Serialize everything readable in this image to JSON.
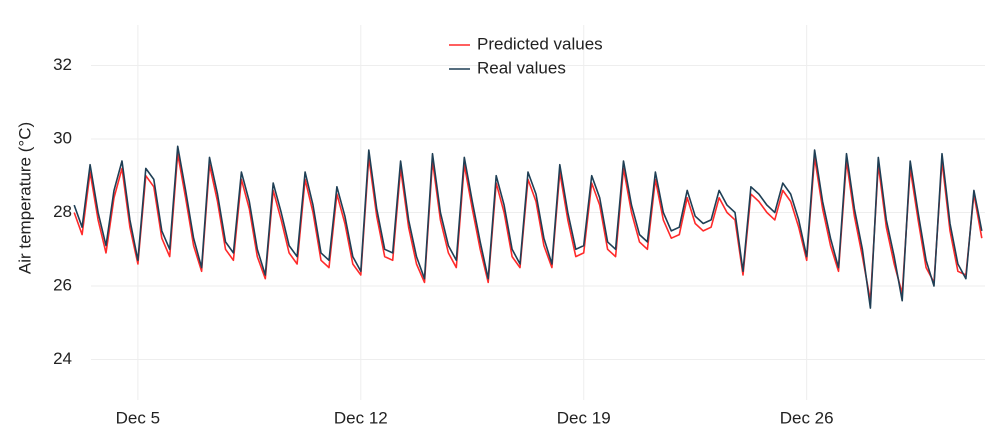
{
  "chart_data": {
    "type": "line",
    "y_label": "Air temperature (°C)",
    "x": [
      3,
      3.25,
      3.5,
      3.75,
      4,
      4.25,
      4.5,
      4.75,
      5,
      5.25,
      5.5,
      5.75,
      6,
      6.25,
      6.5,
      6.75,
      7,
      7.25,
      7.5,
      7.75,
      8,
      8.25,
      8.5,
      8.75,
      9,
      9.25,
      9.5,
      9.75,
      10,
      10.25,
      10.5,
      10.75,
      11,
      11.25,
      11.5,
      11.75,
      12,
      12.25,
      12.5,
      12.75,
      13,
      13.25,
      13.5,
      13.75,
      14,
      14.25,
      14.5,
      14.75,
      15,
      15.25,
      15.5,
      15.75,
      16,
      16.25,
      16.5,
      16.75,
      17,
      17.25,
      17.5,
      17.75,
      18,
      18.25,
      18.5,
      18.75,
      19,
      19.25,
      19.5,
      19.75,
      20,
      20.25,
      20.5,
      20.75,
      21,
      21.25,
      21.5,
      21.75,
      22,
      22.25,
      22.5,
      22.75,
      23,
      23.25,
      23.5,
      23.75,
      24,
      24.25,
      24.5,
      24.75,
      25,
      25.25,
      25.5,
      25.75,
      26,
      26.25,
      26.5,
      26.75,
      27,
      27.25,
      27.5,
      27.75,
      28,
      28.25,
      28.5,
      28.75,
      29,
      29.25,
      29.5,
      29.75,
      30,
      30.25,
      30.5,
      30.75,
      31,
      31.25,
      31.5
    ],
    "series": [
      {
        "name": "Predicted values",
        "color": "#ff2a2a",
        "values": [
          28.0,
          27.4,
          29.1,
          27.8,
          26.9,
          28.4,
          29.2,
          27.6,
          26.6,
          29.0,
          28.7,
          27.3,
          26.8,
          29.6,
          28.4,
          27.1,
          26.4,
          29.3,
          28.3,
          27.0,
          26.7,
          28.9,
          28.1,
          26.8,
          26.2,
          28.6,
          27.8,
          26.9,
          26.6,
          28.9,
          28.0,
          26.7,
          26.5,
          28.5,
          27.7,
          26.6,
          26.3,
          29.5,
          27.9,
          26.8,
          26.7,
          29.2,
          27.6,
          26.6,
          26.1,
          29.4,
          27.8,
          26.9,
          26.5,
          29.3,
          28.1,
          27.0,
          26.1,
          28.8,
          28.0,
          26.8,
          26.5,
          28.9,
          28.3,
          27.1,
          26.5,
          29.1,
          27.8,
          26.8,
          26.9,
          28.8,
          28.2,
          27.0,
          26.8,
          29.2,
          28.0,
          27.2,
          27.0,
          28.9,
          27.8,
          27.3,
          27.4,
          28.4,
          27.7,
          27.5,
          27.6,
          28.4,
          28.0,
          27.8,
          26.3,
          28.5,
          28.3,
          28.0,
          27.8,
          28.6,
          28.3,
          27.6,
          26.7,
          29.5,
          28.1,
          27.1,
          26.4,
          29.4,
          27.9,
          26.8,
          25.6,
          29.3,
          27.6,
          26.6,
          25.8,
          29.2,
          27.8,
          26.5,
          26.1,
          29.4,
          27.5,
          26.4,
          26.3,
          28.5,
          27.3
        ]
      },
      {
        "name": "Real values",
        "color": "#1f3f55",
        "values": [
          28.2,
          27.6,
          29.3,
          28.0,
          27.1,
          28.6,
          29.4,
          27.8,
          26.7,
          29.2,
          28.9,
          27.5,
          27.0,
          29.8,
          28.6,
          27.3,
          26.5,
          29.5,
          28.5,
          27.2,
          26.9,
          29.1,
          28.3,
          27.0,
          26.3,
          28.8,
          28.0,
          27.1,
          26.8,
          29.1,
          28.2,
          26.9,
          26.7,
          28.7,
          27.9,
          26.8,
          26.4,
          29.7,
          28.1,
          27.0,
          26.9,
          29.4,
          27.8,
          26.8,
          26.2,
          29.6,
          28.0,
          27.1,
          26.7,
          29.5,
          28.3,
          27.2,
          26.2,
          29.0,
          28.2,
          27.0,
          26.6,
          29.1,
          28.5,
          27.3,
          26.6,
          29.3,
          28.0,
          27.0,
          27.1,
          29.0,
          28.4,
          27.2,
          27.0,
          29.4,
          28.2,
          27.4,
          27.2,
          29.1,
          28.0,
          27.5,
          27.6,
          28.6,
          27.9,
          27.7,
          27.8,
          28.6,
          28.2,
          28.0,
          26.4,
          28.7,
          28.5,
          28.2,
          28.0,
          28.8,
          28.5,
          27.8,
          26.8,
          29.7,
          28.3,
          27.3,
          26.5,
          29.6,
          28.1,
          27.0,
          25.4,
          29.5,
          27.8,
          26.8,
          25.6,
          29.4,
          28.0,
          26.7,
          26.0,
          29.6,
          27.7,
          26.6,
          26.2,
          28.6,
          27.5
        ]
      }
    ],
    "xlim": [
      2.9,
      31.6
    ],
    "ylim": [
      22.9,
      33.1
    ],
    "xticks": [
      {
        "value": 5,
        "label": "Dec 5"
      },
      {
        "value": 12,
        "label": "Dec 12"
      },
      {
        "value": 19,
        "label": "Dec 19"
      },
      {
        "value": 26,
        "label": "Dec 26"
      }
    ],
    "yticks": [
      24,
      26,
      28,
      30,
      32
    ],
    "grid": true,
    "legend": "top"
  }
}
